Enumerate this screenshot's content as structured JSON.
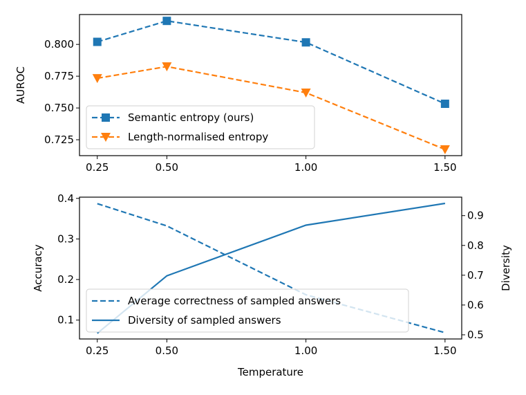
{
  "chart_data": [
    {
      "type": "line",
      "xlabel": "",
      "ylabel": "AUROC",
      "x": [
        0.25,
        0.5,
        1.0,
        1.5
      ],
      "xticks": [
        "0.25",
        "0.50",
        "1.00",
        "1.50"
      ],
      "yticks": [
        "0.725",
        "0.750",
        "0.775",
        "0.800"
      ],
      "xlim": [
        0.186,
        1.56
      ],
      "ylim": [
        0.7125,
        0.8235
      ],
      "grid": false,
      "legend_placement": "lower-left",
      "series": [
        {
          "name": "Semantic entropy (ours)",
          "values": [
            0.802,
            0.8185,
            0.8016,
            0.7533
          ],
          "color": "#1f77b4",
          "marker": "square",
          "linestyle": "dashed"
        },
        {
          "name": "Length-normalised entropy",
          "values": [
            0.7734,
            0.7826,
            0.762,
            0.7174
          ],
          "color": "#ff7f0e",
          "marker": "triangle-down",
          "linestyle": "dashed"
        }
      ]
    },
    {
      "type": "line",
      "xlabel": "Temperature",
      "ylabel": "Accuracy",
      "ylabel_right": "Diversity",
      "x": [
        0.25,
        0.5,
        1.0,
        1.5
      ],
      "xticks": [
        "0.25",
        "0.50",
        "1.00",
        "1.50"
      ],
      "yticks": [
        "0.1",
        "0.2",
        "0.3",
        "0.4"
      ],
      "yticks_right": [
        "0.5",
        "0.6",
        "0.7",
        "0.8",
        "0.9"
      ],
      "xlim": [
        0.186,
        1.56
      ],
      "ylim": [
        0.0535,
        0.403
      ],
      "ylim_right": [
        0.486,
        0.962
      ],
      "grid": false,
      "legend_placement": "lower-left",
      "series": [
        {
          "name": "Average correctness of sampled answers",
          "values": [
            0.387,
            0.332,
            0.1625,
            0.069
          ],
          "color": "#1f77b4",
          "linestyle": "dashed",
          "axis": "left"
        },
        {
          "name": "Diversity of sampled answers",
          "values": [
            0.505,
            0.698,
            0.868,
            0.941
          ],
          "color": "#1f77b4",
          "linestyle": "solid",
          "axis": "right"
        }
      ]
    }
  ]
}
